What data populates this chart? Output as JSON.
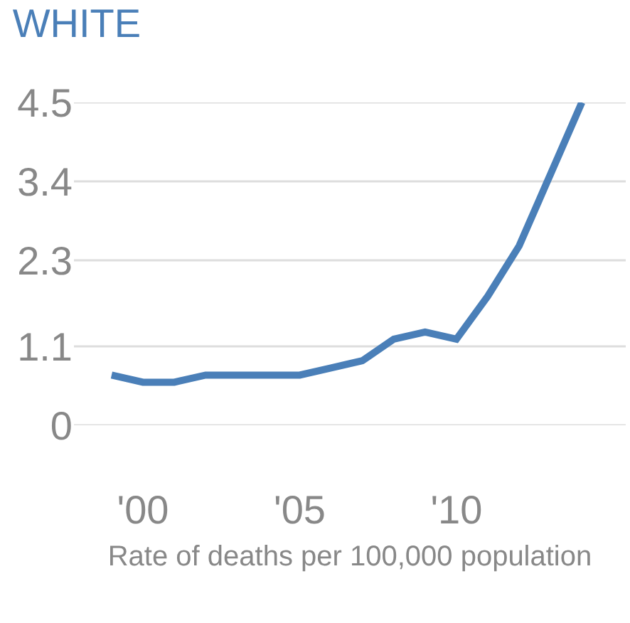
{
  "chart_data": {
    "type": "line",
    "title": "WHITE",
    "xlabel": "Rate of deaths per 100,000 population",
    "x": [
      1999,
      2000,
      2001,
      2002,
      2003,
      2004,
      2005,
      2006,
      2007,
      2008,
      2009,
      2010,
      2011,
      2012,
      2013,
      2014
    ],
    "series": [
      {
        "color": "#4a7fb8",
        "values": [
          0.7,
          0.6,
          0.6,
          0.7,
          0.7,
          0.7,
          0.7,
          0.8,
          0.9,
          1.2,
          1.3,
          1.2,
          1.8,
          2.5,
          3.5,
          4.5
        ]
      }
    ],
    "xlim": [
      1997.8,
      2015.4
    ],
    "xticks": [
      {
        "value": 2000,
        "label": "'00"
      },
      {
        "value": 2005,
        "label": "'05"
      },
      {
        "value": 2010,
        "label": "'10"
      }
    ],
    "ylim": [
      0,
      4.5
    ],
    "yticks": [
      0,
      1.1,
      2.3,
      3.4,
      4.5
    ],
    "grid": "y",
    "marker": "none",
    "line_style": "solid"
  }
}
